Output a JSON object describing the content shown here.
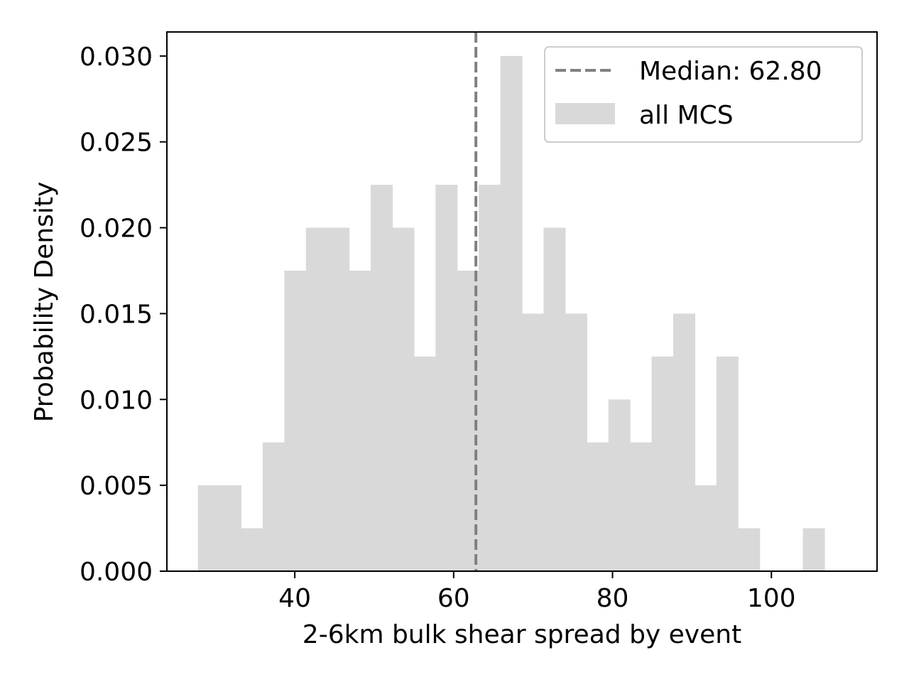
{
  "chart_data": {
    "type": "bar",
    "subtype": "histogram",
    "xlabel": "2-6km bulk shear spread by event",
    "ylabel": "Probability Density",
    "xlim": [
      23.9,
      113.3
    ],
    "ylim": [
      0,
      0.0314
    ],
    "x_ticks": [
      40,
      60,
      80,
      100
    ],
    "x_tick_labels": [
      "40",
      "60",
      "80",
      "100"
    ],
    "y_ticks": [
      0,
      0.005,
      0.01,
      0.015,
      0.02,
      0.025,
      0.03
    ],
    "y_tick_labels": [
      "0.000",
      "0.005",
      "0.010",
      "0.015",
      "0.020",
      "0.025",
      "0.030"
    ],
    "bin_start": 27.8,
    "bin_width": 2.72,
    "values": [
      0.005,
      0.005,
      0.0025,
      0.0075,
      0.0175,
      0.02,
      0.02,
      0.0175,
      0.0225,
      0.02,
      0.0125,
      0.0225,
      0.0175,
      0.0225,
      0.03,
      0.015,
      0.02,
      0.015,
      0.0075,
      0.01,
      0.0075,
      0.0125,
      0.015,
      0.005,
      0.0125,
      0.0025,
      0,
      0,
      0.0025
    ],
    "median": 62.8,
    "grid": false,
    "legend_position": "upper right",
    "legend": [
      {
        "label": "Median: 62.80",
        "style": "dashed-line",
        "color": "#808080"
      },
      {
        "label": "all MCS",
        "style": "patch",
        "color": "#d9d9d9"
      }
    ],
    "bar_color": "#d9d9d9",
    "median_color": "#808080"
  }
}
